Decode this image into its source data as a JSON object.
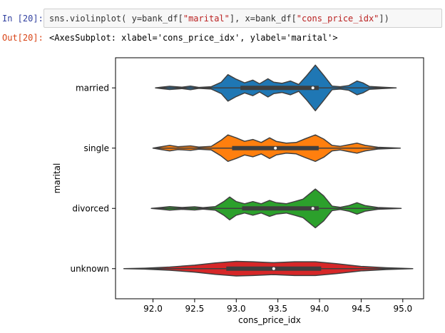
{
  "cell": {
    "in_prompt": "In [20]:",
    "code": {
      "p1": "sns.violinplot( y=bank_df[",
      "s1": "\"marital\"",
      "p2": "], x=bank_df[",
      "s2": "\"cons_price_idx\"",
      "p3": "])"
    },
    "out_prompt": "Out[20]:",
    "out_text": "<AxesSubplot: xlabel='cons_price_idx', ylabel='marital'>"
  },
  "chart_data": {
    "type": "violin",
    "orientation": "horizontal",
    "xlabel": "cons_price_idx",
    "ylabel": "marital",
    "xlim": [
      91.55,
      95.25
    ],
    "xticks": [
      "92.0",
      "92.5",
      "93.0",
      "93.5",
      "94.0",
      "94.5",
      "95.0"
    ],
    "categories": [
      "married",
      "single",
      "divorced",
      "unknown"
    ],
    "series": [
      {
        "category": "married",
        "color": "#1f77b4",
        "min": 92.03,
        "max": 94.92,
        "q1": 93.05,
        "median": 93.92,
        "q3": 93.99,
        "density": [
          [
            92.03,
            0
          ],
          [
            92.1,
            0.03
          ],
          [
            92.2,
            0.07
          ],
          [
            92.35,
            0.03
          ],
          [
            92.45,
            0.08
          ],
          [
            92.55,
            0.02
          ],
          [
            92.7,
            0.05
          ],
          [
            92.82,
            0.25
          ],
          [
            92.9,
            0.58
          ],
          [
            93.0,
            0.38
          ],
          [
            93.1,
            0.22
          ],
          [
            93.2,
            0.34
          ],
          [
            93.28,
            0.18
          ],
          [
            93.38,
            0.4
          ],
          [
            93.45,
            0.25
          ],
          [
            93.55,
            0.2
          ],
          [
            93.65,
            0.3
          ],
          [
            93.75,
            0.15
          ],
          [
            93.85,
            0.55
          ],
          [
            93.95,
            1.0
          ],
          [
            94.05,
            0.55
          ],
          [
            94.15,
            0.08
          ],
          [
            94.25,
            0.05
          ],
          [
            94.35,
            0.1
          ],
          [
            94.45,
            0.3
          ],
          [
            94.52,
            0.22
          ],
          [
            94.6,
            0.06
          ],
          [
            94.75,
            0.03
          ],
          [
            94.92,
            0
          ]
        ]
      },
      {
        "category": "single",
        "color": "#ff7f0e",
        "min": 92.0,
        "max": 94.97,
        "q1": 92.95,
        "median": 93.47,
        "q3": 93.99,
        "density": [
          [
            92.0,
            0
          ],
          [
            92.1,
            0.06
          ],
          [
            92.2,
            0.12
          ],
          [
            92.3,
            0.06
          ],
          [
            92.45,
            0.1
          ],
          [
            92.55,
            0.05
          ],
          [
            92.7,
            0.08
          ],
          [
            92.82,
            0.35
          ],
          [
            92.9,
            0.58
          ],
          [
            93.0,
            0.45
          ],
          [
            93.1,
            0.3
          ],
          [
            93.2,
            0.38
          ],
          [
            93.3,
            0.25
          ],
          [
            93.4,
            0.45
          ],
          [
            93.48,
            0.3
          ],
          [
            93.6,
            0.22
          ],
          [
            93.72,
            0.25
          ],
          [
            93.82,
            0.4
          ],
          [
            93.95,
            0.58
          ],
          [
            94.05,
            0.4
          ],
          [
            94.15,
            0.12
          ],
          [
            94.25,
            0.08
          ],
          [
            94.35,
            0.15
          ],
          [
            94.45,
            0.22
          ],
          [
            94.55,
            0.12
          ],
          [
            94.7,
            0.04
          ],
          [
            94.97,
            0
          ]
        ]
      },
      {
        "category": "divorced",
        "color": "#2ca02c",
        "min": 91.98,
        "max": 94.98,
        "q1": 93.07,
        "median": 93.92,
        "q3": 93.99,
        "density": [
          [
            91.98,
            0
          ],
          [
            92.1,
            0.04
          ],
          [
            92.2,
            0.08
          ],
          [
            92.35,
            0.04
          ],
          [
            92.5,
            0.07
          ],
          [
            92.6,
            0.03
          ],
          [
            92.75,
            0.08
          ],
          [
            92.85,
            0.3
          ],
          [
            92.92,
            0.5
          ],
          [
            93.0,
            0.3
          ],
          [
            93.1,
            0.2
          ],
          [
            93.2,
            0.3
          ],
          [
            93.3,
            0.2
          ],
          [
            93.4,
            0.35
          ],
          [
            93.48,
            0.25
          ],
          [
            93.6,
            0.2
          ],
          [
            93.7,
            0.3
          ],
          [
            93.8,
            0.4
          ],
          [
            93.95,
            0.85
          ],
          [
            94.05,
            0.55
          ],
          [
            94.15,
            0.1
          ],
          [
            94.25,
            0.05
          ],
          [
            94.35,
            0.12
          ],
          [
            94.45,
            0.25
          ],
          [
            94.55,
            0.12
          ],
          [
            94.7,
            0.04
          ],
          [
            94.98,
            0
          ]
        ]
      },
      {
        "category": "unknown",
        "color": "#d62728",
        "min": 91.65,
        "max": 95.12,
        "q1": 92.88,
        "median": 93.45,
        "q3": 94.02,
        "density": [
          [
            91.65,
            0
          ],
          [
            91.9,
            0.02
          ],
          [
            92.2,
            0.07
          ],
          [
            92.5,
            0.15
          ],
          [
            92.75,
            0.25
          ],
          [
            93.0,
            0.32
          ],
          [
            93.2,
            0.3
          ],
          [
            93.45,
            0.26
          ],
          [
            93.7,
            0.3
          ],
          [
            93.95,
            0.3
          ],
          [
            94.2,
            0.22
          ],
          [
            94.5,
            0.1
          ],
          [
            94.8,
            0.04
          ],
          [
            95.12,
            0
          ]
        ]
      }
    ]
  }
}
